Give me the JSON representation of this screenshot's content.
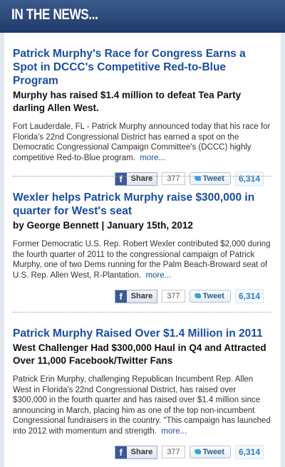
{
  "header": {
    "title": "IN THE NEWS..."
  },
  "articles": [
    {
      "title": "Patrick Murphy's Race for Congress Earns a Spot in DCCC's Competitive Red-to-Blue Program",
      "subtitle": "Murphy has raised $1.4 million to defeat Tea Party darling Allen West.",
      "body": "Fort Lauderdale, FL - Patrick Murphy announced today that his race for Florida's 22nd Congressional District has earned a spot on the Democratic Congressional Campaign Committee's (DCCC) highly competitive Red-to-Blue program.",
      "more": "more...",
      "share": {
        "facebook_label": "Share",
        "facebook_count": "377",
        "twitter_label": "Tweet",
        "twitter_count": "6,314"
      }
    },
    {
      "title": "Wexler helps Patrick Murphy raise $300,000 in quarter for West's seat",
      "subtitle": "by George Bennett | January 15th, 2012",
      "body": "Former Democratic U.S. Rep. Robert Wexler contributed $2,000 during the fourth quarter of 2011 to the congressional campaign of Patrick Murphy, one of two Dems running for the Palm Beach-Broward seat of U.S. Rep. Allen West, R-Plantation.",
      "more": "more...",
      "share": {
        "facebook_label": "Share",
        "facebook_count": "377",
        "twitter_label": "Tweet",
        "twitter_count": "6,314"
      }
    },
    {
      "title": "Patrick Murphy Raised Over $1.4 Million in 2011",
      "subtitle": "West Challenger Had $300,000 Haul in Q4 and Attracted Over 11,000 Facebook/Twitter Fans",
      "body": "Patrick Erin Murphy, challenging Republican Incumbent Rep. Allen West in Florida's 22nd Congressional District, has raised over $300,000 in the fourth quarter and has raised over $1.4 million since announcing in March, placing him as one of the top non-incumbent Congressional fundraisers in the country. \"This campaign has launched into 2012 with momentum and strength.",
      "more": "more...",
      "share": {
        "facebook_label": "Share",
        "facebook_count": "377",
        "twitter_label": "Tweet",
        "twitter_count": "6,314"
      }
    }
  ]
}
